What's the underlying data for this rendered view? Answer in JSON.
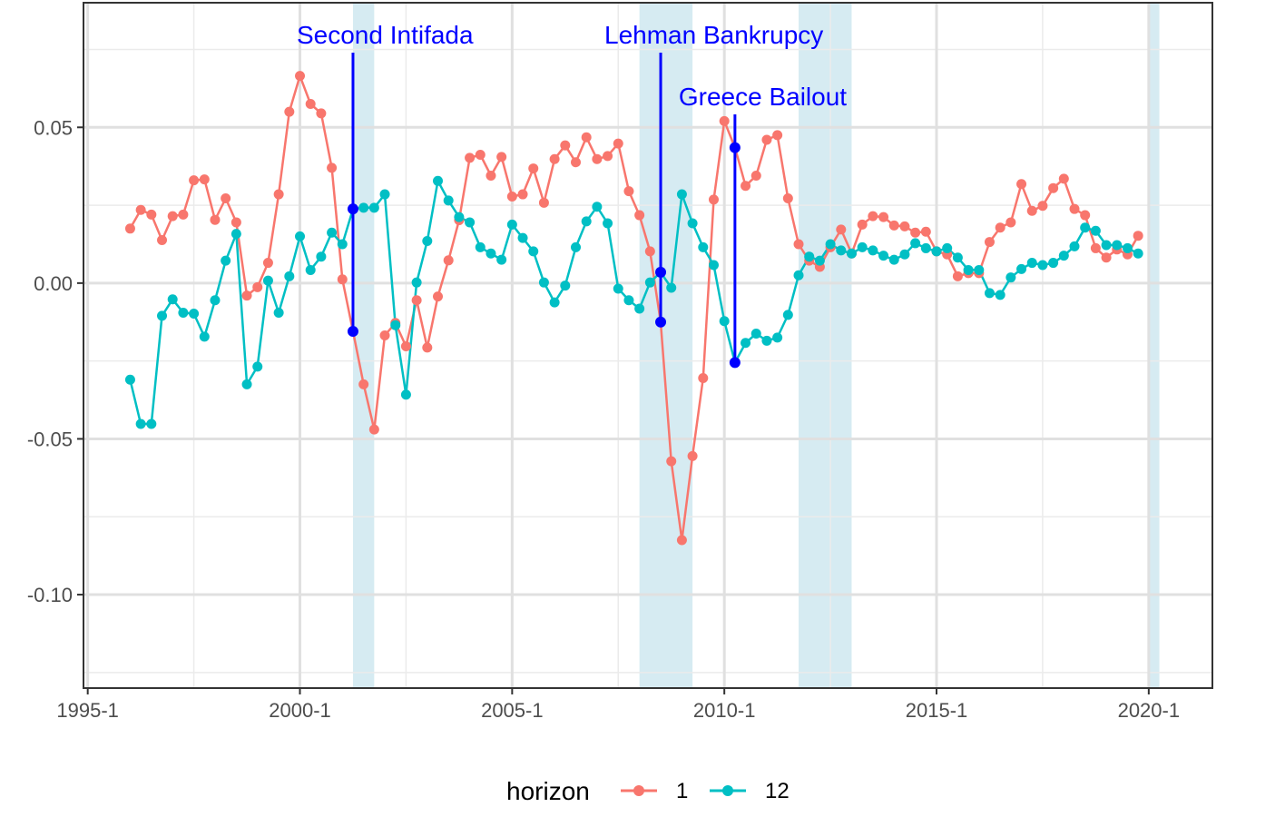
{
  "chart_data": {
    "type": "line",
    "title": "",
    "xlabel": "",
    "ylabel": "",
    "x_ticks": [
      "1995-1",
      "2000-1",
      "2005-1",
      "2010-1",
      "2015-1",
      "2020-1"
    ],
    "x_tick_values": [
      1995.0,
      2000.0,
      2005.0,
      2010.0,
      2015.0,
      2020.0
    ],
    "y_ticks": [
      "0.05",
      "0.00",
      "-0.05",
      "-0.10"
    ],
    "y_tick_values": [
      0.05,
      0.0,
      -0.05,
      -0.1
    ],
    "xlim": [
      1994.9,
      2021.5
    ],
    "ylim": [
      -0.13,
      0.09
    ],
    "grid": true,
    "legend": {
      "title": "horizon",
      "position": "bottom"
    },
    "recession_bands": [
      [
        2001.25,
        2001.75
      ],
      [
        2008.0,
        2009.25
      ],
      [
        2011.75,
        2013.0
      ],
      [
        2020.0,
        2020.25
      ]
    ],
    "events": [
      {
        "label": "Second Intifada",
        "x": 2001.25,
        "y1": -0.0155,
        "y12": 0.0238
      },
      {
        "label": "Lehman Bankrupcy",
        "x": 2008.5,
        "y1": -0.0125,
        "y12": 0.0035
      },
      {
        "label": "Greece Bailout",
        "x": 2010.25,
        "y1": 0.0435,
        "y12": -0.0255
      }
    ],
    "series": [
      {
        "name": "1",
        "color": "#F8766D",
        "x": [
          1996.0,
          1996.25,
          1996.5,
          1996.75,
          1997.0,
          1997.25,
          1997.5,
          1997.75,
          1998.0,
          1998.25,
          1998.5,
          1998.75,
          1999.0,
          1999.25,
          1999.5,
          1999.75,
          2000.0,
          2000.25,
          2000.5,
          2000.75,
          2001.0,
          2001.25,
          2001.5,
          2001.75,
          2002.0,
          2002.25,
          2002.5,
          2002.75,
          2003.0,
          2003.25,
          2003.5,
          2003.75,
          2004.0,
          2004.25,
          2004.5,
          2004.75,
          2005.0,
          2005.25,
          2005.5,
          2005.75,
          2006.0,
          2006.25,
          2006.5,
          2006.75,
          2007.0,
          2007.25,
          2007.5,
          2007.75,
          2008.0,
          2008.25,
          2008.5,
          2008.75,
          2009.0,
          2009.25,
          2009.5,
          2009.75,
          2010.0,
          2010.25,
          2010.5,
          2010.75,
          2011.0,
          2011.25,
          2011.5,
          2011.75,
          2012.0,
          2012.25,
          2012.5,
          2012.75,
          2013.0,
          2013.25,
          2013.5,
          2013.75,
          2014.0,
          2014.25,
          2014.5,
          2014.75,
          2015.0,
          2015.25,
          2015.5,
          2015.75,
          2016.0,
          2016.25,
          2016.5,
          2016.75,
          2017.0,
          2017.25,
          2017.5,
          2017.75,
          2018.0,
          2018.25,
          2018.5,
          2018.75,
          2019.0,
          2019.25,
          2019.5,
          2019.75
        ],
        "values": [
          0.0175,
          0.0235,
          0.022,
          0.0138,
          0.0215,
          0.022,
          0.033,
          0.0333,
          0.0203,
          0.0272,
          0.0195,
          -0.004,
          -0.0013,
          0.0065,
          0.0285,
          0.055,
          0.0665,
          0.0575,
          0.0545,
          0.037,
          0.0012,
          -0.0155,
          -0.0325,
          -0.047,
          -0.0168,
          -0.0128,
          -0.0203,
          -0.0055,
          -0.0207,
          -0.0043,
          0.0073,
          0.0202,
          0.0402,
          0.0412,
          0.0345,
          0.0405,
          0.0278,
          0.0285,
          0.0368,
          0.0258,
          0.0398,
          0.0442,
          0.0388,
          0.0468,
          0.0398,
          0.0408,
          0.0448,
          0.0295,
          0.0218,
          0.0102,
          -0.0125,
          -0.0572,
          -0.0825,
          -0.0555,
          -0.0305,
          0.0268,
          0.052,
          0.0435,
          0.0312,
          0.0345,
          0.046,
          0.0475,
          0.0272,
          0.0125,
          0.0072,
          0.0052,
          0.0115,
          0.0172,
          0.0095,
          0.0188,
          0.0215,
          0.0212,
          0.0185,
          0.0182,
          0.0162,
          0.0165,
          0.0102,
          0.0092,
          0.0022,
          0.0032,
          0.0032,
          0.0132,
          0.0178,
          0.0195,
          0.0318,
          0.0232,
          0.0248,
          0.0305,
          0.0335,
          0.0238,
          0.0218,
          0.0112,
          0.0082,
          0.0108,
          0.0092,
          0.0152
        ]
      },
      {
        "name": "12",
        "color": "#00BFC4",
        "x": [
          1996.0,
          1996.25,
          1996.5,
          1996.75,
          1997.0,
          1997.25,
          1997.5,
          1997.75,
          1998.0,
          1998.25,
          1998.5,
          1998.75,
          1999.0,
          1999.25,
          1999.5,
          1999.75,
          2000.0,
          2000.25,
          2000.5,
          2000.75,
          2001.0,
          2001.25,
          2001.5,
          2001.75,
          2002.0,
          2002.25,
          2002.5,
          2002.75,
          2003.0,
          2003.25,
          2003.5,
          2003.75,
          2004.0,
          2004.25,
          2004.5,
          2004.75,
          2005.0,
          2005.25,
          2005.5,
          2005.75,
          2006.0,
          2006.25,
          2006.5,
          2006.75,
          2007.0,
          2007.25,
          2007.5,
          2007.75,
          2008.0,
          2008.25,
          2008.5,
          2008.75,
          2009.0,
          2009.25,
          2009.5,
          2009.75,
          2010.0,
          2010.25,
          2010.5,
          2010.75,
          2011.0,
          2011.25,
          2011.5,
          2011.75,
          2012.0,
          2012.25,
          2012.5,
          2012.75,
          2013.0,
          2013.25,
          2013.5,
          2013.75,
          2014.0,
          2014.25,
          2014.5,
          2014.75,
          2015.0,
          2015.25,
          2015.5,
          2015.75,
          2016.0,
          2016.25,
          2016.5,
          2016.75,
          2017.0,
          2017.25,
          2017.5,
          2017.75,
          2018.0,
          2018.25,
          2018.5,
          2018.75,
          2019.0,
          2019.25,
          2019.5,
          2019.75
        ],
        "values": [
          -0.031,
          -0.0452,
          -0.0452,
          -0.0105,
          -0.0052,
          -0.0095,
          -0.0098,
          -0.0172,
          -0.0055,
          0.0072,
          0.0158,
          -0.0325,
          -0.0268,
          0.0008,
          -0.0095,
          0.0022,
          0.015,
          0.0042,
          0.0085,
          0.0162,
          0.0125,
          0.0238,
          0.0242,
          0.0242,
          0.0285,
          -0.0135,
          -0.0358,
          0.0002,
          0.0135,
          0.0328,
          0.0265,
          0.0212,
          0.0195,
          0.0115,
          0.0095,
          0.0075,
          0.0188,
          0.0145,
          0.0102,
          0.0002,
          -0.0062,
          -0.0008,
          0.0115,
          0.0198,
          0.0245,
          0.0192,
          -0.0018,
          -0.0055,
          -0.0082,
          0.0002,
          0.0035,
          -0.0015,
          0.0285,
          0.0192,
          0.0115,
          0.0058,
          -0.0122,
          -0.0255,
          -0.0192,
          -0.0162,
          -0.0185,
          -0.0175,
          -0.0102,
          0.0025,
          0.0085,
          0.0072,
          0.0125,
          0.0105,
          0.0095,
          0.0115,
          0.0105,
          0.0088,
          0.0075,
          0.0092,
          0.0128,
          0.0112,
          0.0102,
          0.0112,
          0.0082,
          0.0042,
          0.0042,
          -0.0032,
          -0.0038,
          0.0018,
          0.0045,
          0.0065,
          0.0058,
          0.0065,
          0.0088,
          0.0118,
          0.0178,
          0.0168,
          0.0122,
          0.0122,
          0.0112,
          0.0095
        ]
      }
    ]
  },
  "legend": {
    "title": "horizon",
    "items": [
      "1",
      "12"
    ]
  }
}
